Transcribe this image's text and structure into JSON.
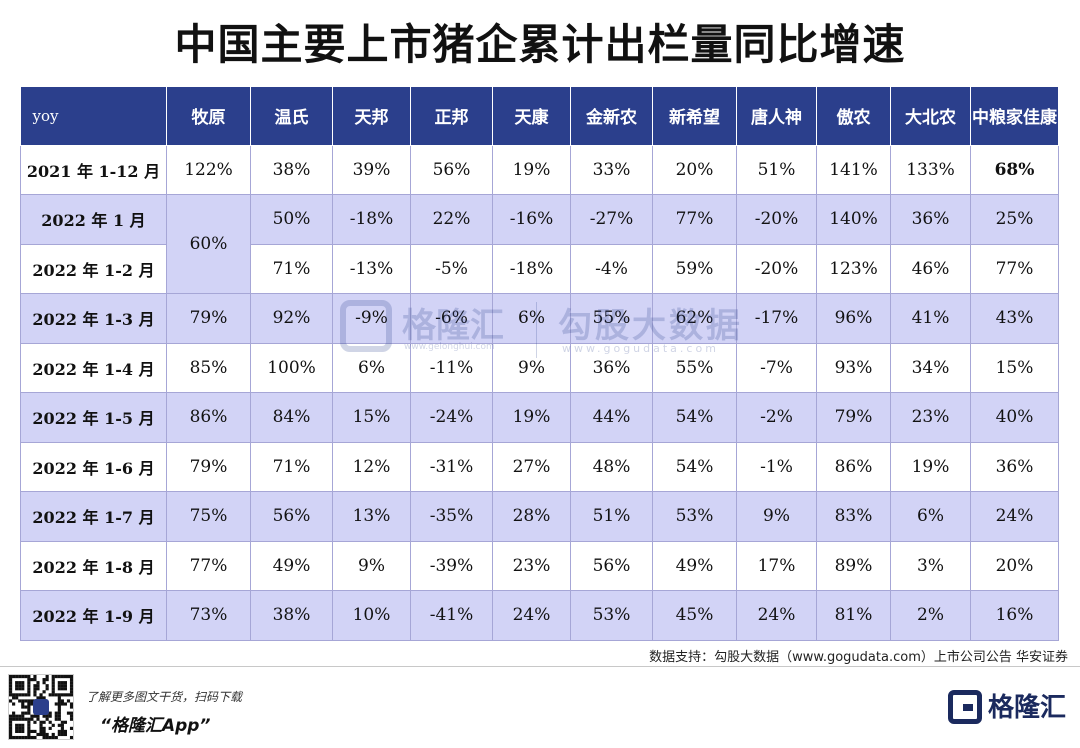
{
  "title": "中国主要上市猪企累计出栏量同比增速",
  "source": "数据支持：勾股大数据（www.gogudata.com）上市公司公告 华安证券",
  "watermark": {
    "brand1": "格隆汇",
    "brand1_sub": "www.gelonghui.com",
    "brand2": "勾股大数据",
    "brand2_sub": "www.gogudata.com"
  },
  "footer": {
    "promo_line1": "了解更多图文干货，扫码下载",
    "promo_line2": "“格隆汇App”",
    "brand": "格隆汇",
    "qr_icon": "qr-code-icon"
  },
  "colors": {
    "header_bg": "#2b3f8c",
    "row_alt": "#d2d3f6"
  },
  "chart_data": {
    "type": "table",
    "title": "中国主要上市猪企累计出栏量同比增速",
    "corner_label": "yoy",
    "columns": [
      "牧原",
      "温氏",
      "天邦",
      "正邦",
      "天康",
      "金新农",
      "新希望",
      "唐人神",
      "傲农",
      "大北农",
      "中粮家佳康"
    ],
    "merged_note": {
      "column": "牧原",
      "rows": [
        "2022 年 1 月",
        "2022 年 1-2 月"
      ],
      "value": "60%"
    },
    "rows": [
      {
        "period": "2021 年 1-12 月",
        "values": [
          "122%",
          "38%",
          "39%",
          "56%",
          "19%",
          "33%",
          "20%",
          "51%",
          "141%",
          "133%",
          "68%"
        ]
      },
      {
        "period": "2022 年 1 月",
        "values": [
          "60%",
          "50%",
          "-18%",
          "22%",
          "-16%",
          "-27%",
          "77%",
          "-20%",
          "140%",
          "36%",
          "25%"
        ]
      },
      {
        "period": "2022 年 1-2 月",
        "values": [
          "",
          "71%",
          "-13%",
          "-5%",
          "-18%",
          "-4%",
          "59%",
          "-20%",
          "123%",
          "46%",
          "77%"
        ]
      },
      {
        "period": "2022 年 1-3 月",
        "values": [
          "79%",
          "92%",
          "-9%",
          "-6%",
          "6%",
          "55%",
          "62%",
          "-17%",
          "96%",
          "41%",
          "43%"
        ]
      },
      {
        "period": "2022 年 1-4 月",
        "values": [
          "85%",
          "100%",
          "6%",
          "-11%",
          "9%",
          "36%",
          "55%",
          "-7%",
          "93%",
          "34%",
          "15%"
        ]
      },
      {
        "period": "2022 年 1-5 月",
        "values": [
          "86%",
          "84%",
          "15%",
          "-24%",
          "19%",
          "44%",
          "54%",
          "-2%",
          "79%",
          "23%",
          "40%"
        ]
      },
      {
        "period": "2022 年 1-6 月",
        "values": [
          "79%",
          "71%",
          "12%",
          "-31%",
          "27%",
          "48%",
          "54%",
          "-1%",
          "86%",
          "19%",
          "36%"
        ]
      },
      {
        "period": "2022 年 1-7 月",
        "values": [
          "75%",
          "56%",
          "13%",
          "-35%",
          "28%",
          "51%",
          "53%",
          "9%",
          "83%",
          "6%",
          "24%"
        ]
      },
      {
        "period": "2022 年 1-8 月",
        "values": [
          "77%",
          "49%",
          "9%",
          "-39%",
          "23%",
          "56%",
          "49%",
          "17%",
          "89%",
          "3%",
          "20%"
        ]
      },
      {
        "period": "2022 年 1-9 月",
        "values": [
          "73%",
          "38%",
          "10%",
          "-41%",
          "24%",
          "53%",
          "45%",
          "24%",
          "81%",
          "2%",
          "16%"
        ]
      }
    ]
  }
}
